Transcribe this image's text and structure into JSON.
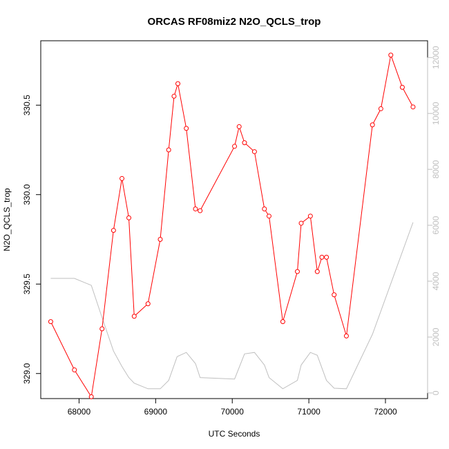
{
  "chart_data": {
    "type": "line",
    "title": "ORCAS RF08miz2 N2O_QCLS_trop",
    "xlabel": "UTC Seconds",
    "ylabel": "N2O_QCLS_trop",
    "xlim": [
      67500,
      72550
    ],
    "ylim": [
      328.86,
      330.86
    ],
    "y2lim": [
      -200,
      12600
    ],
    "x_ticks": [
      68000,
      69000,
      70000,
      71000,
      72000
    ],
    "x_tick_labels": [
      "68000",
      "69000",
      "70000",
      "71000",
      "72000"
    ],
    "y_ticks": [
      329.0,
      329.5,
      330.0,
      330.5
    ],
    "y_tick_labels": [
      "329.0",
      "329.5",
      "330.0",
      "330.5"
    ],
    "y2_ticks": [
      0,
      2000,
      4000,
      6000,
      8000,
      10000,
      12000
    ],
    "y2_tick_labels": [
      "0",
      "2000",
      "4000",
      "6000",
      "8000",
      "10000",
      "12000"
    ],
    "grid": false,
    "series": [
      {
        "axis": "left",
        "color": "#ff0000",
        "marker": "open-circle",
        "x": [
          67630,
          67940,
          68160,
          68300,
          68450,
          68560,
          68650,
          68720,
          68900,
          69060,
          69170,
          69240,
          69290,
          69400,
          69520,
          69580,
          70030,
          70090,
          70160,
          70290,
          70420,
          70480,
          70660,
          70850,
          70900,
          71020,
          71110,
          71170,
          71230,
          71330,
          71490,
          71830,
          71940,
          72070,
          72220,
          72360
        ],
        "y": [
          329.29,
          329.02,
          328.87,
          329.25,
          329.8,
          330.09,
          329.87,
          329.32,
          329.39,
          329.75,
          330.25,
          330.55,
          330.62,
          330.37,
          329.92,
          329.91,
          330.27,
          330.38,
          330.29,
          330.24,
          329.92,
          329.88,
          329.29,
          329.57,
          329.84,
          329.88,
          329.57,
          329.65,
          329.65,
          329.44,
          329.21,
          330.39,
          330.48,
          330.78,
          330.6,
          330.49
        ]
      },
      {
        "axis": "right",
        "color": "#bfbfbf",
        "marker": "none",
        "x": [
          67630,
          67940,
          68160,
          68300,
          68450,
          68560,
          68650,
          68720,
          68900,
          69060,
          69170,
          69280,
          69400,
          69520,
          69580,
          70030,
          70160,
          70290,
          70420,
          70480,
          70660,
          70850,
          70900,
          71020,
          71110,
          71230,
          71330,
          71490,
          71830,
          72360
        ],
        "y": [
          4100,
          4100,
          3850,
          2700,
          1500,
          950,
          550,
          350,
          150,
          150,
          450,
          1300,
          1450,
          1050,
          550,
          500,
          1400,
          1450,
          1000,
          550,
          150,
          450,
          1000,
          1450,
          1350,
          450,
          170,
          150,
          2100,
          6100
        ]
      }
    ]
  }
}
